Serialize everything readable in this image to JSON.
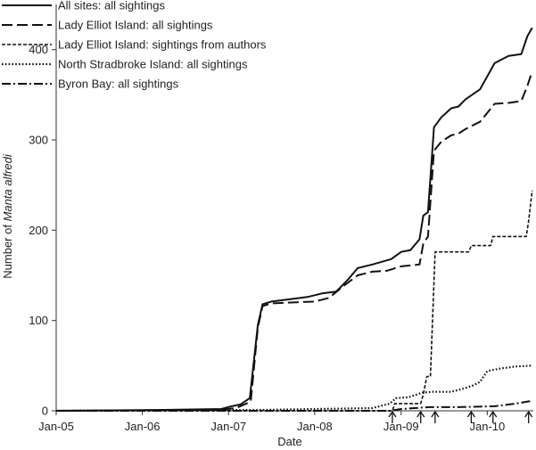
{
  "chart_data": {
    "type": "line",
    "title": "",
    "xlabel": "Date",
    "ylabel_prefix": "Number of ",
    "ylabel_italic": "Manta alfredi",
    "xlim": [
      "2005-01-01",
      "2010-07-15"
    ],
    "ylim": [
      0,
      450
    ],
    "x_ticks": [
      {
        "date": "2005-01-01",
        "label": "Jan-05"
      },
      {
        "date": "2006-01-01",
        "label": "Jan-06"
      },
      {
        "date": "2007-01-01",
        "label": "Jan-07"
      },
      {
        "date": "2008-01-01",
        "label": "Jan-08"
      },
      {
        "date": "2009-01-01",
        "label": "Jan-09"
      },
      {
        "date": "2010-01-01",
        "label": "Jan-10"
      }
    ],
    "y_ticks": [
      {
        "value": 0,
        "label": "0"
      },
      {
        "value": 100,
        "label": "100"
      },
      {
        "value": 200,
        "label": "200"
      },
      {
        "value": 300,
        "label": "300"
      },
      {
        "value": 400,
        "label": "400"
      }
    ],
    "grid": false,
    "legend_position": "top-left",
    "arrow_markers": [
      "2008-11-25",
      "2009-03-25",
      "2009-05-25",
      "2009-10-25",
      "2010-01-25",
      "2010-06-25"
    ],
    "series": [
      {
        "name": "All sites: all sightings",
        "style": "solid",
        "points": [
          [
            "2005-01-01",
            0
          ],
          [
            "2006-04-01",
            1
          ],
          [
            "2006-12-01",
            2
          ],
          [
            "2007-01-15",
            5
          ],
          [
            "2007-02-20",
            7
          ],
          [
            "2007-04-01",
            14
          ],
          [
            "2007-05-05",
            95
          ],
          [
            "2007-05-25",
            118
          ],
          [
            "2007-07-01",
            121
          ],
          [
            "2007-09-01",
            123
          ],
          [
            "2007-12-01",
            126
          ],
          [
            "2008-02-01",
            130
          ],
          [
            "2008-04-01",
            132
          ],
          [
            "2008-05-20",
            145
          ],
          [
            "2008-07-01",
            158
          ],
          [
            "2008-09-01",
            162
          ],
          [
            "2008-11-20",
            168
          ],
          [
            "2009-01-01",
            176
          ],
          [
            "2009-02-10",
            178
          ],
          [
            "2009-03-20",
            190
          ],
          [
            "2009-04-05",
            216
          ],
          [
            "2009-04-25",
            220
          ],
          [
            "2009-05-20",
            314
          ],
          [
            "2009-06-20",
            325
          ],
          [
            "2009-08-01",
            335
          ],
          [
            "2009-09-01",
            337
          ],
          [
            "2009-10-01",
            345
          ],
          [
            "2009-12-01",
            356
          ],
          [
            "2010-02-01",
            385
          ],
          [
            "2010-04-01",
            393
          ],
          [
            "2010-05-25",
            395
          ],
          [
            "2010-06-20",
            415
          ],
          [
            "2010-07-10",
            424
          ]
        ]
      },
      {
        "name": "Lady Elliot Island: all sightings",
        "style": "dash",
        "points": [
          [
            "2005-01-01",
            0
          ],
          [
            "2006-12-01",
            1
          ],
          [
            "2007-02-01",
            3
          ],
          [
            "2007-04-05",
            10
          ],
          [
            "2007-05-05",
            92
          ],
          [
            "2007-05-25",
            116
          ],
          [
            "2007-07-01",
            119
          ],
          [
            "2008-01-01",
            121
          ],
          [
            "2008-03-01",
            125
          ],
          [
            "2008-05-01",
            138
          ],
          [
            "2008-07-01",
            150
          ],
          [
            "2008-09-01",
            154
          ],
          [
            "2008-11-01",
            155
          ],
          [
            "2009-01-01",
            160
          ],
          [
            "2009-03-20",
            162
          ],
          [
            "2009-04-05",
            185
          ],
          [
            "2009-04-25",
            193
          ],
          [
            "2009-05-20",
            288
          ],
          [
            "2009-06-20",
            298
          ],
          [
            "2009-08-01",
            305
          ],
          [
            "2009-09-01",
            307
          ],
          [
            "2009-10-01",
            312
          ],
          [
            "2009-12-01",
            320
          ],
          [
            "2010-02-01",
            340
          ],
          [
            "2010-04-01",
            341
          ],
          [
            "2010-05-25",
            343
          ],
          [
            "2010-06-20",
            360
          ],
          [
            "2010-07-10",
            376
          ]
        ]
      },
      {
        "name": "Lady Elliot Island: sightings from authors",
        "style": "shortdash",
        "points": [
          [
            "2005-01-01",
            0
          ],
          [
            "2008-11-25",
            0
          ],
          [
            "2008-12-05",
            8
          ],
          [
            "2009-03-25",
            8
          ],
          [
            "2009-04-05",
            18
          ],
          [
            "2009-04-20",
            38
          ],
          [
            "2009-05-05",
            38
          ],
          [
            "2009-05-25",
            176
          ],
          [
            "2009-10-15",
            176
          ],
          [
            "2009-10-25",
            183
          ],
          [
            "2010-01-15",
            183
          ],
          [
            "2010-01-25",
            193
          ],
          [
            "2010-06-15",
            193
          ],
          [
            "2010-06-25",
            210
          ],
          [
            "2010-07-10",
            244
          ]
        ]
      },
      {
        "name": "North Stradbroke Island: all sightings",
        "style": "dot",
        "points": [
          [
            "2005-01-01",
            0
          ],
          [
            "2007-06-01",
            1
          ],
          [
            "2008-01-01",
            2
          ],
          [
            "2008-09-01",
            3
          ],
          [
            "2008-11-15",
            8
          ],
          [
            "2008-12-10",
            14
          ],
          [
            "2009-02-01",
            15
          ],
          [
            "2009-04-01",
            20
          ],
          [
            "2009-05-15",
            21
          ],
          [
            "2009-08-01",
            21
          ],
          [
            "2009-09-15",
            24
          ],
          [
            "2009-11-01",
            28
          ],
          [
            "2009-12-01",
            32
          ],
          [
            "2010-01-01",
            44
          ],
          [
            "2010-03-01",
            47
          ],
          [
            "2010-05-01",
            49
          ],
          [
            "2010-07-10",
            50
          ]
        ]
      },
      {
        "name": "Byron Bay: all sightings",
        "style": "dashdot",
        "points": [
          [
            "2005-01-01",
            0
          ],
          [
            "2008-11-15",
            0
          ],
          [
            "2009-01-01",
            2
          ],
          [
            "2009-05-01",
            4
          ],
          [
            "2009-09-01",
            4
          ],
          [
            "2010-02-01",
            5
          ],
          [
            "2010-05-01",
            8
          ],
          [
            "2010-06-15",
            10
          ],
          [
            "2010-07-10",
            11
          ]
        ]
      }
    ]
  }
}
